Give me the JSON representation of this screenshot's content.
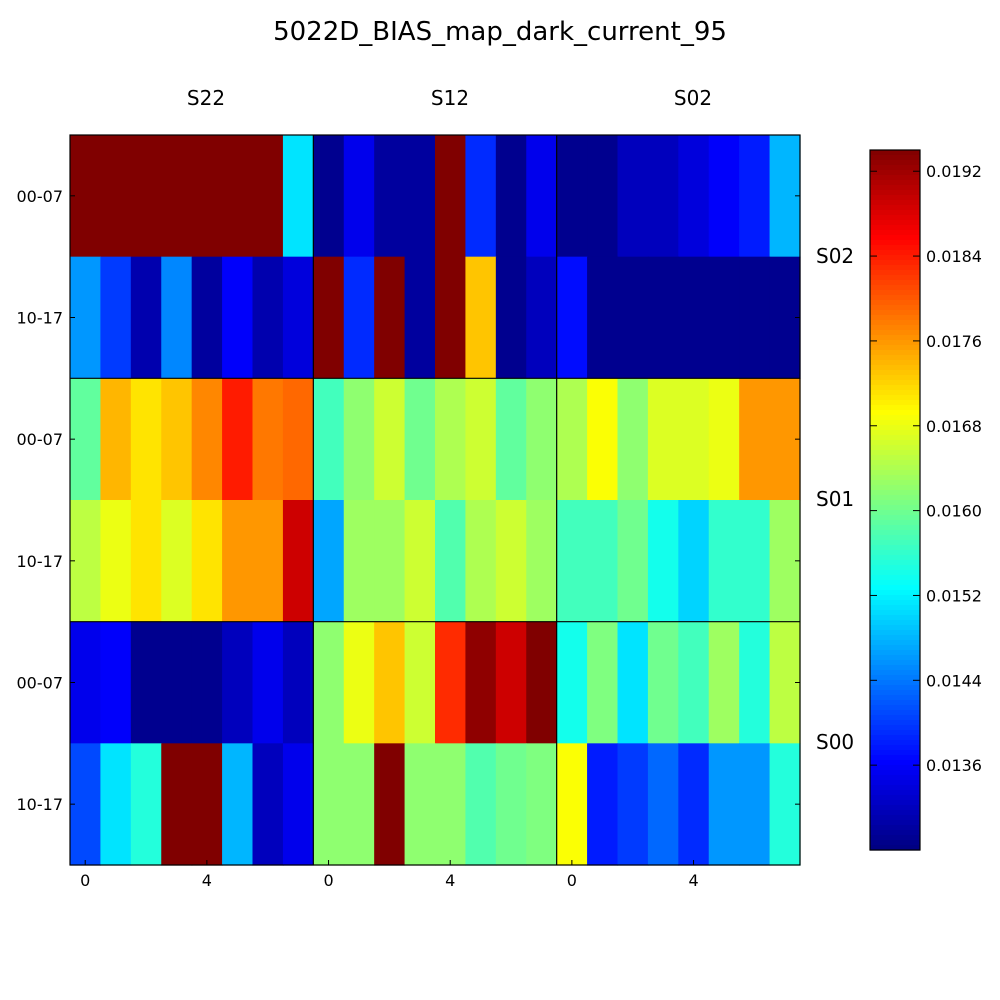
{
  "chart_data": {
    "type": "heatmap",
    "title": "5022D_BIAS_map_dark_current_95",
    "column_groups": [
      "S22",
      "S12",
      "S02"
    ],
    "row_groups": [
      "S02",
      "S01",
      "S00"
    ],
    "row_labels": [
      "00-07",
      "10-17",
      "00-07",
      "10-17",
      "00-07",
      "10-17"
    ],
    "x_ticks": [
      {
        "group": 0,
        "col": 0,
        "label": "0"
      },
      {
        "group": 0,
        "col": 4,
        "label": "4"
      },
      {
        "group": 1,
        "col": 0,
        "label": "0"
      },
      {
        "group": 1,
        "col": 4,
        "label": "4"
      },
      {
        "group": 2,
        "col": 0,
        "label": "0"
      },
      {
        "group": 2,
        "col": 4,
        "label": "4"
      }
    ],
    "columns_per_group": 8,
    "colormap": "jet",
    "vmin": 0.0128,
    "vmax": 0.0194,
    "colorbar_ticks": [
      "0.0136",
      "0.0144",
      "0.0152",
      "0.0160",
      "0.0168",
      "0.0176",
      "0.0184",
      "0.0192"
    ],
    "values": [
      [
        0.0194,
        0.0194,
        0.0194,
        0.0194,
        0.0194,
        0.0194,
        0.0194,
        0.0151,
        0.0129,
        0.0135,
        0.013,
        0.013,
        0.0194,
        0.0139,
        0.0129,
        0.0135,
        0.0129,
        0.0129,
        0.0132,
        0.0132,
        0.0134,
        0.0136,
        0.0138,
        0.0148
      ],
      [
        0.0146,
        0.014,
        0.0131,
        0.0145,
        0.013,
        0.0136,
        0.0131,
        0.0134,
        0.0194,
        0.0139,
        0.0194,
        0.013,
        0.0194,
        0.0173,
        0.0129,
        0.0132,
        0.0137,
        0.0129,
        0.0129,
        0.0129,
        0.0129,
        0.0129,
        0.0129,
        0.0129
      ],
      [
        0.0159,
        0.0174,
        0.0171,
        0.0173,
        0.0177,
        0.0184,
        0.0178,
        0.0179,
        0.0157,
        0.0162,
        0.0166,
        0.016,
        0.0164,
        0.0166,
        0.0159,
        0.0162,
        0.0164,
        0.0169,
        0.0162,
        0.0167,
        0.0167,
        0.0168,
        0.0176,
        0.0176
      ],
      [
        0.0165,
        0.0168,
        0.0171,
        0.0167,
        0.0171,
        0.0176,
        0.0176,
        0.0189,
        0.0147,
        0.0163,
        0.0163,
        0.0166,
        0.0158,
        0.0164,
        0.0166,
        0.0163,
        0.0157,
        0.0157,
        0.016,
        0.0154,
        0.015,
        0.0156,
        0.0156,
        0.0163
      ],
      [
        0.0135,
        0.0136,
        0.0129,
        0.0129,
        0.0129,
        0.0132,
        0.0135,
        0.0132,
        0.0162,
        0.0168,
        0.0173,
        0.0166,
        0.0183,
        0.0193,
        0.0189,
        0.0194,
        0.0154,
        0.0161,
        0.0151,
        0.016,
        0.0157,
        0.0163,
        0.0155,
        0.0165
      ],
      [
        0.0141,
        0.0151,
        0.0155,
        0.0194,
        0.0194,
        0.0148,
        0.0132,
        0.0135,
        0.0162,
        0.0162,
        0.0194,
        0.0162,
        0.0162,
        0.0158,
        0.016,
        0.0161,
        0.0169,
        0.0138,
        0.014,
        0.0143,
        0.0139,
        0.0146,
        0.0146,
        0.0155
      ]
    ]
  }
}
